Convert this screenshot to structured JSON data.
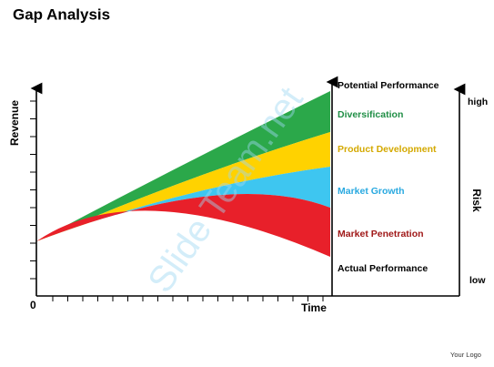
{
  "header": {
    "title": "Gap Analysis"
  },
  "axes": {
    "y_label": "Revenue",
    "x_label": "Time",
    "origin": "0"
  },
  "bands": [
    {
      "label": "Potential Performance"
    },
    {
      "label": "Diversification"
    },
    {
      "label": "Product Development"
    },
    {
      "label": "Market Growth"
    },
    {
      "label": "Market Penetration"
    },
    {
      "label": "Actual Performance"
    }
  ],
  "risk": {
    "label": "Risk",
    "high": "high",
    "low": "low"
  },
  "watermark": "Slide Team.net",
  "footer": {
    "logo": "Your Logo"
  }
}
